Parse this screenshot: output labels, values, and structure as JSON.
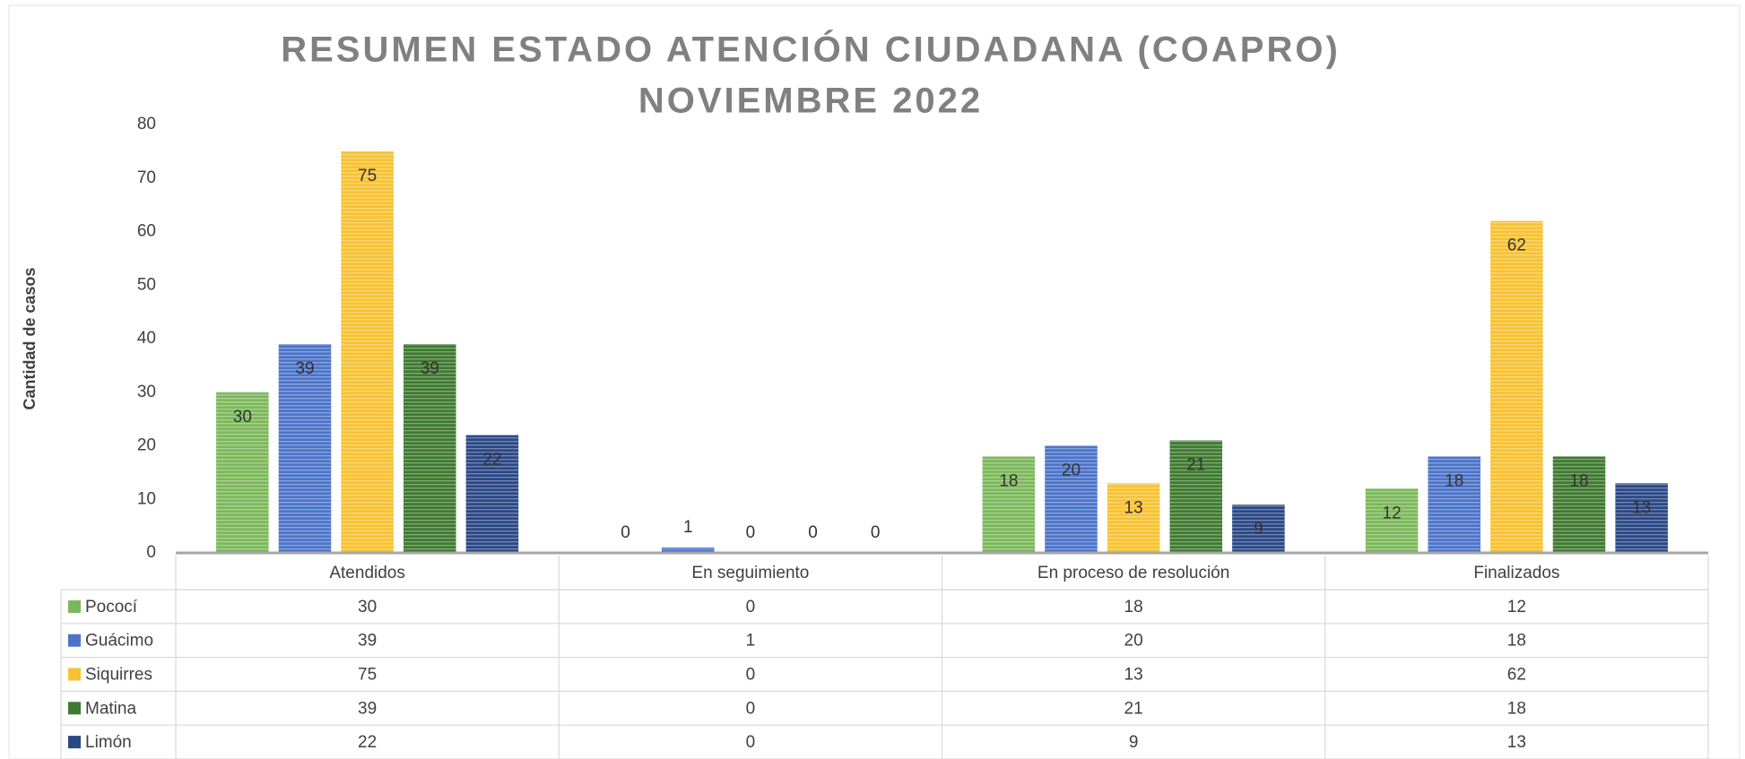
{
  "chart_data": {
    "type": "bar",
    "title": [
      "RESUMEN ESTADO ATENCIÓN CIUDADANA (COAPRO)",
      "NOVIEMBRE 2022"
    ],
    "y_label": "Cantidad de casos",
    "categories": [
      "Atendidos",
      "En seguimiento",
      "En proceso de resolución",
      "Finalizados"
    ],
    "series": [
      {
        "name": "Pococí",
        "color": "#7cb85a",
        "values": [
          30,
          0,
          18,
          12
        ]
      },
      {
        "name": "Guácimo",
        "color": "#4d74c9",
        "values": [
          39,
          1,
          20,
          18
        ]
      },
      {
        "name": "Siquirres",
        "color": "#f7c232",
        "values": [
          75,
          0,
          13,
          62
        ]
      },
      {
        "name": "Matina",
        "color": "#3f7a30",
        "values": [
          39,
          0,
          21,
          18
        ]
      },
      {
        "name": "Limón",
        "color": "#2b4886",
        "values": [
          22,
          0,
          9,
          13
        ]
      }
    ],
    "ylim": [
      0,
      80
    ],
    "yticks": [
      0,
      10,
      20,
      30,
      40,
      50,
      60,
      70,
      80
    ],
    "grid": false
  }
}
